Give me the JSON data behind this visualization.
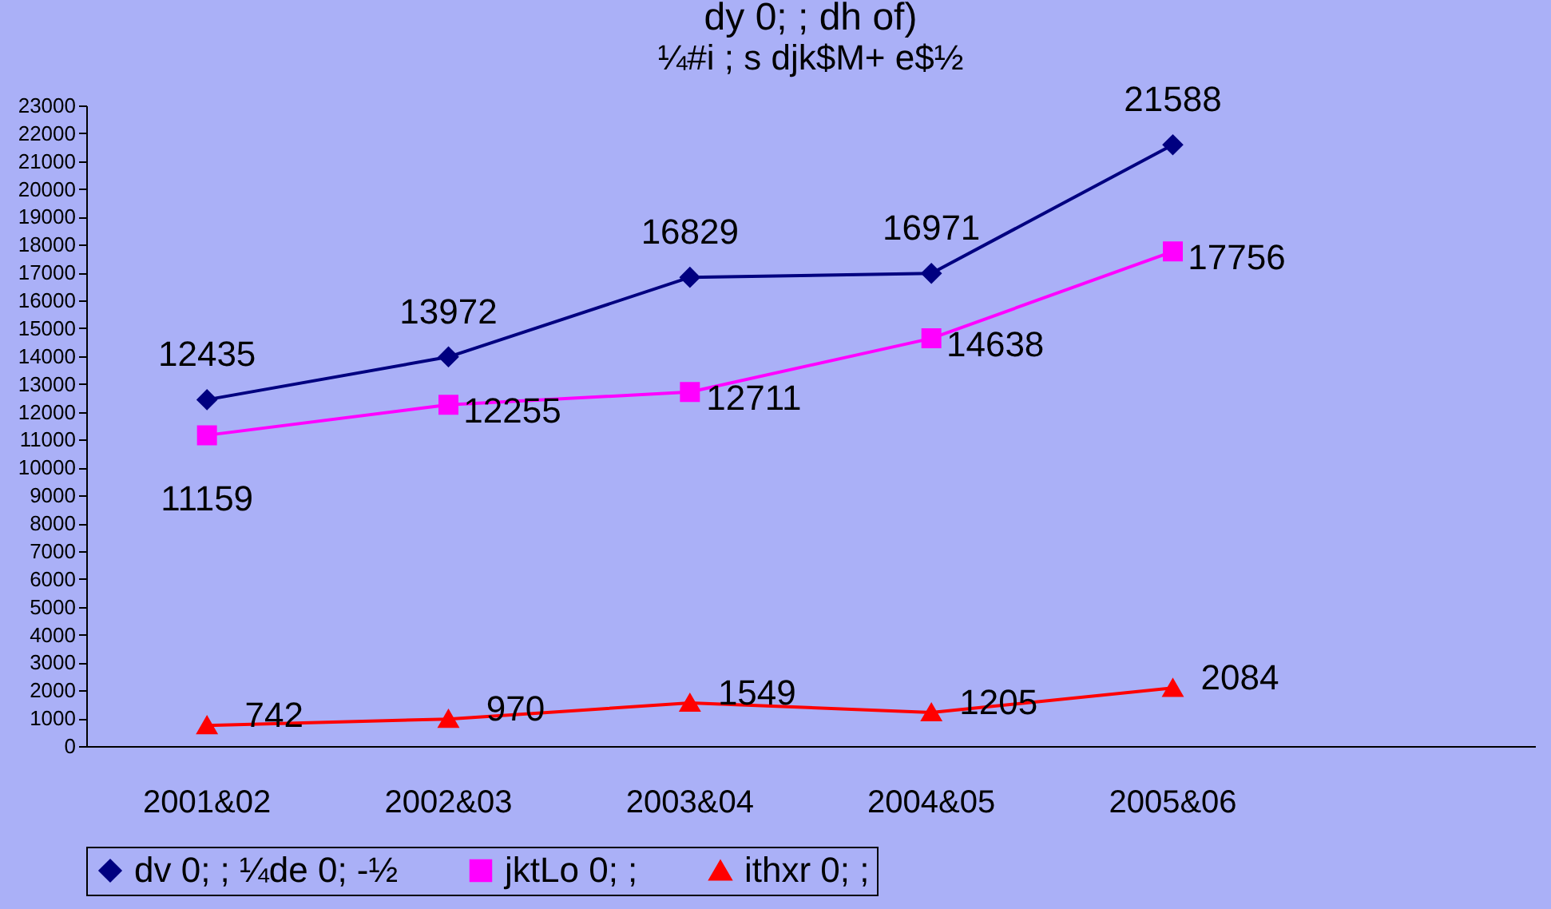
{
  "chart_data": {
    "type": "line",
    "title": "dy 0; ;  dh of)",
    "subtitle": "¼#i ; s djk$M+ e$½",
    "categories": [
      "2001&02",
      "2002&03",
      "2003&04",
      "2004&05",
      "2005&06",
      null
    ],
    "series": [
      {
        "name": "dv 0; ; ¼de 0; -½",
        "color": "#000080",
        "marker": "diamond",
        "values": [
          12435,
          13972,
          16829,
          16971,
          21588,
          null
        ]
      },
      {
        "name": "jktLo 0; ;",
        "color": "#ff00ff",
        "marker": "square",
        "values": [
          11159,
          12255,
          12711,
          14638,
          17756,
          null
        ]
      },
      {
        "name": "ithxr 0; ;",
        "color": "#ff0000",
        "marker": "triangle",
        "values": [
          742,
          970,
          1549,
          1205,
          2084,
          null
        ]
      }
    ],
    "ylim": [
      0,
      23000
    ],
    "yticks": [
      0,
      1000,
      2000,
      3000,
      4000,
      5000,
      6000,
      7000,
      8000,
      9000,
      10000,
      11000,
      12000,
      13000,
      14000,
      15000,
      16000,
      17000,
      18000,
      19000,
      20000,
      21000,
      22000,
      23000
    ],
    "grid": false,
    "legend": "bottom",
    "data_labels": true,
    "line_style": "solid"
  }
}
